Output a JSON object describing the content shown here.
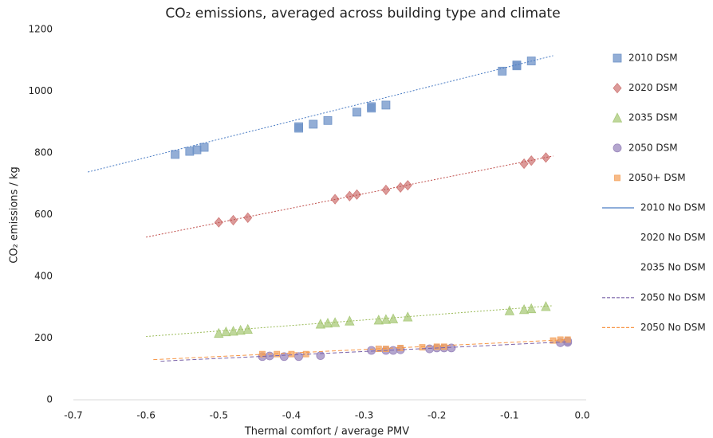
{
  "chart_data": {
    "type": "scatter",
    "title": "CO₂ emissions, averaged across building type and climate",
    "y_label": "CO₂ emissions / kg",
    "x_label": "Thermal comfort / average PMV",
    "xlim": [
      -0.7,
      0.0
    ],
    "ylim": [
      0,
      1200
    ],
    "xticks": [
      -0.7,
      -0.6,
      -0.5,
      -0.4,
      -0.3,
      -0.2,
      -0.1,
      {
        "value": 0,
        "label": "0.0"
      }
    ],
    "yticks": [
      0,
      200,
      400,
      600,
      800,
      1000,
      1200
    ],
    "grid": false,
    "legend": "right",
    "series": [
      {
        "name": "2010 DSM",
        "color": "#6f93c8",
        "marker": "square",
        "x": [
          -0.56,
          -0.54,
          -0.53,
          -0.52,
          -0.39,
          -0.39,
          -0.37,
          -0.35,
          -0.31,
          -0.29,
          -0.29,
          -0.27,
          -0.11,
          -0.09,
          -0.09,
          -0.07
        ],
        "values": [
          795,
          805,
          810,
          818,
          880,
          885,
          893,
          905,
          932,
          945,
          950,
          955,
          1065,
          1082,
          1085,
          1098
        ]
      },
      {
        "name": "2020 DSM",
        "color": "#d07a78",
        "marker": "diamond",
        "x": [
          -0.5,
          -0.48,
          -0.46,
          -0.34,
          -0.32,
          -0.31,
          -0.27,
          -0.25,
          -0.24,
          -0.08,
          -0.07,
          -0.05
        ],
        "values": [
          575,
          582,
          590,
          650,
          660,
          665,
          680,
          688,
          695,
          765,
          775,
          785
        ]
      },
      {
        "name": "2035 DSM",
        "color": "#a9c97a",
        "marker": "triangle",
        "x": [
          -0.5,
          -0.49,
          -0.48,
          -0.47,
          -0.46,
          -0.36,
          -0.35,
          -0.34,
          -0.32,
          -0.28,
          -0.27,
          -0.26,
          -0.24,
          -0.1,
          -0.08,
          -0.07,
          -0.05
        ],
        "values": [
          215,
          220,
          222,
          225,
          228,
          245,
          248,
          250,
          255,
          258,
          260,
          262,
          268,
          288,
          292,
          295,
          302
        ]
      },
      {
        "name": "2050 DSM",
        "color": "#9b88bd",
        "marker": "circle",
        "x": [
          -0.44,
          -0.43,
          -0.41,
          -0.39,
          -0.36,
          -0.29,
          -0.27,
          -0.26,
          -0.25,
          -0.21,
          -0.2,
          -0.19,
          -0.18,
          -0.03,
          -0.02,
          -0.02
        ],
        "values": [
          140,
          142,
          140,
          140,
          143,
          160,
          160,
          160,
          162,
          165,
          168,
          168,
          168,
          185,
          186,
          190
        ]
      },
      {
        "name": "2050+ DSM",
        "color": "#f4a460",
        "marker": "small-square",
        "x": [
          -0.44,
          -0.42,
          -0.4,
          -0.38,
          -0.28,
          -0.27,
          -0.25,
          -0.22,
          -0.2,
          -0.19,
          -0.04,
          -0.03,
          -0.02
        ],
        "values": [
          148,
          148,
          148,
          148,
          165,
          165,
          168,
          170,
          172,
          172,
          192,
          195,
          195
        ]
      },
      {
        "name": "2010 No DSM",
        "color": "#4a7cc4",
        "marker": "line",
        "dash": "dotted",
        "legend_line": true,
        "x": [
          -0.68,
          -0.04
        ],
        "values": [
          738,
          1115
        ]
      },
      {
        "name": "2020 No DSM",
        "color": "#c0504d",
        "marker": "line",
        "dash": "dotted",
        "legend_line": false,
        "x": [
          -0.6,
          -0.04
        ],
        "values": [
          527,
          790
        ]
      },
      {
        "name": "2035 No DSM",
        "color": "#9bbb59",
        "marker": "line",
        "dash": "dotted",
        "legend_line": false,
        "x": [
          -0.6,
          -0.04
        ],
        "values": [
          205,
          305
        ]
      },
      {
        "name": "2050 No DSM",
        "color": "#7a62a8",
        "marker": "line",
        "dash": "dashed",
        "legend_line": true,
        "x": [
          -0.58,
          -0.02
        ],
        "values": [
          125,
          188
        ]
      },
      {
        "name": "2050 No DSM",
        "color": "#f79646",
        "marker": "line",
        "dash": "dashed",
        "legend_line": true,
        "x": [
          -0.59,
          -0.02
        ],
        "values": [
          130,
          195
        ]
      }
    ]
  }
}
